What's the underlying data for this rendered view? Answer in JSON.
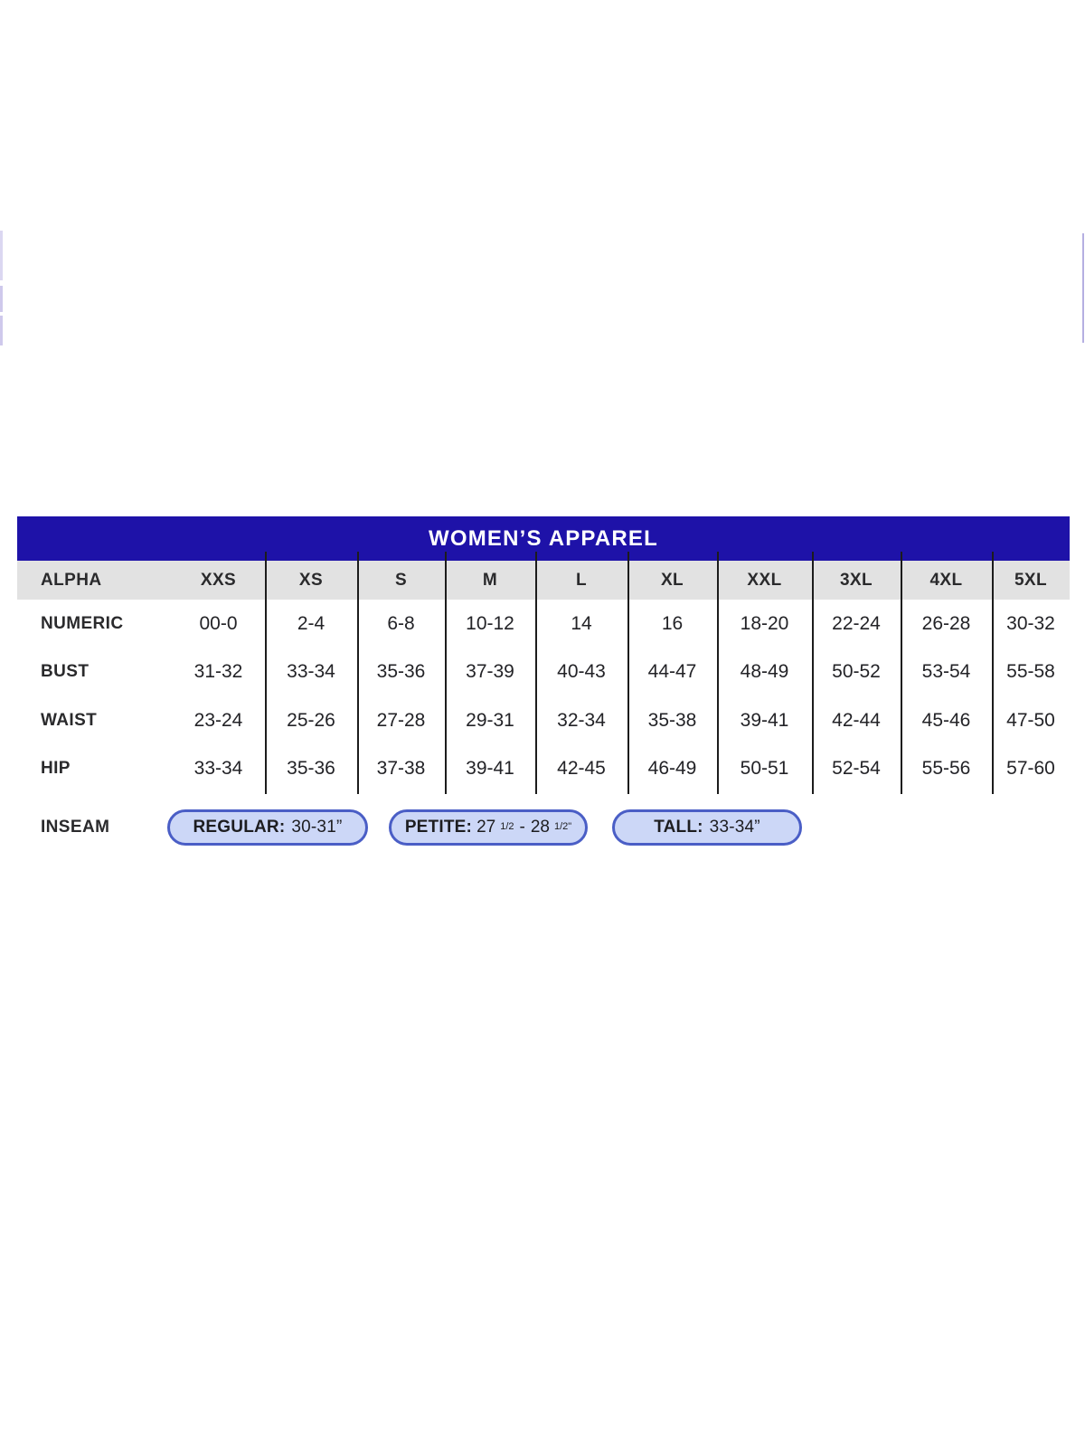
{
  "colors": {
    "bar-blue": "#1e12a8",
    "head-gray": "#e2e2e2",
    "ink": "#232327",
    "line": "#1c1c1c",
    "pill-bg": "#ccd7f7",
    "pill-border": "#4a5ec6"
  },
  "chart_data": {
    "type": "table",
    "title": "WOMEN’S APPAREL",
    "columns": [
      "ALPHA",
      "XXS",
      "XS",
      "S",
      "M",
      "L",
      "XL",
      "XXL",
      "3XL",
      "4XL",
      "5XL"
    ],
    "rows": [
      [
        "NUMERIC",
        "00-0",
        "2-4",
        "6-8",
        "10-12",
        "14",
        "16",
        "18-20",
        "22-24",
        "26-28",
        "30-32"
      ],
      [
        "BUST",
        "31-32",
        "33-34",
        "35-36",
        "37-39",
        "40-43",
        "44-47",
        "48-49",
        "50-52",
        "53-54",
        "55-58"
      ],
      [
        "WAIST",
        "23-24",
        "25-26",
        "27-28",
        "29-31",
        "32-34",
        "35-38",
        "39-41",
        "42-44",
        "45-46",
        "47-50"
      ],
      [
        "HIP",
        "33-34",
        "35-36",
        "37-38",
        "39-41",
        "42-45",
        "46-49",
        "50-51",
        "52-54",
        "55-56",
        "57-60"
      ]
    ],
    "layout": {
      "grid": "vertical-separators-only",
      "header_fill": "#e2e2e2",
      "title_fill": "#1e12a8"
    }
  },
  "inseam": {
    "label": "INSEAM",
    "pills": [
      {
        "label": "REGULAR:",
        "value": "30-31”"
      },
      {
        "label": "PETITE:",
        "n1": "27",
        "f1": "1/2",
        "sep": "-",
        "n2": "28",
        "f2": "1/2",
        "unit": "\""
      },
      {
        "label": "TALL:",
        "value": "33-34”"
      }
    ]
  }
}
